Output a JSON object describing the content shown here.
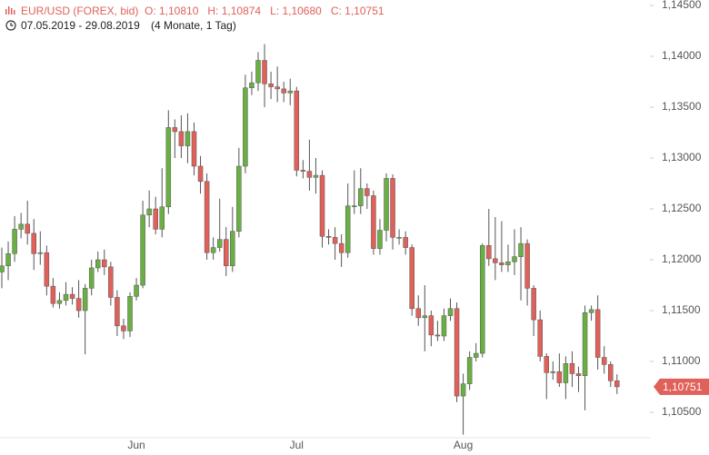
{
  "chart_data": {
    "type": "candlestick",
    "title": "EUR/USD (FOREX, bid)",
    "ohlc_labels": [
      "O: 1,10810",
      "H: 1,10874",
      "L: 1,10680",
      "C: 1,10751"
    ],
    "date_range": "07.05.2019 - 29.08.2019",
    "period": "(4 Monate, 1 Tag)",
    "categories": [
      null,
      null,
      null,
      null,
      null,
      null,
      null,
      null,
      null,
      null,
      null,
      null,
      null,
      null,
      null,
      null,
      null,
      null,
      null,
      null,
      null,
      "Jun",
      null,
      null,
      null,
      null,
      null,
      null,
      null,
      null,
      null,
      null,
      null,
      null,
      null,
      null,
      null,
      null,
      null,
      null,
      null,
      null,
      null,
      null,
      null,
      null,
      "Jul",
      null,
      null,
      null,
      null,
      null,
      null,
      null,
      null,
      null,
      null,
      null,
      null,
      null,
      null,
      null,
      null,
      null,
      null,
      null,
      null,
      null,
      null,
      null,
      null,
      null,
      "Aug",
      null,
      null,
      null,
      null,
      null,
      null,
      null,
      null,
      null,
      null,
      null,
      null,
      null,
      null,
      null,
      null,
      null,
      null,
      null,
      null,
      null,
      null,
      null,
      null
    ],
    "open": [
      1.1188,
      1.1194,
      1.1206,
      1.123,
      1.1235,
      1.1226,
      1.1206,
      1.1207,
      1.1174,
      1.1157,
      1.116,
      1.1166,
      1.1162,
      1.115,
      1.1172,
      1.1192,
      1.12,
      1.1193,
      1.1163,
      1.1135,
      1.113,
      1.1164,
      1.1175,
      1.1244,
      1.125,
      1.123,
      1.1252,
      1.133,
      1.1326,
      1.1312,
      1.1326,
      1.1292,
      1.1277,
      1.1207,
      1.1212,
      1.122,
      1.1194,
      1.1228,
      1.1292,
      1.1369,
      1.1374,
      1.1396,
      1.1373,
      1.137,
      1.1368,
      1.1364,
      1.1366,
      1.1288,
      1.1287,
      1.1281,
      1.1283,
      1.1223,
      1.1222,
      1.1216,
      1.1207,
      1.1253,
      1.1253,
      1.127,
      1.1263,
      1.1211,
      1.1229,
      1.128,
      1.1222,
      1.1222,
      1.1212,
      1.1152,
      1.1143,
      1.1145,
      1.1126,
      1.1125,
      1.1145,
      1.1152,
      1.1066,
      1.1078,
      1.1104,
      1.1108,
      1.1214,
      1.1201,
      1.1197,
      1.1195,
      1.1198,
      1.1203,
      1.1216,
      1.1172,
      1.1141,
      1.1105,
      1.1089,
      1.109,
      1.1079,
      1.1098,
      1.1088,
      1.1086,
      1.1148,
      1.1151,
      1.1104,
      1.1097,
      1.1081
    ],
    "high": [
      1.1212,
      1.1218,
      1.1243,
      1.1246,
      1.1258,
      1.124,
      1.1228,
      1.1214,
      1.1182,
      1.1168,
      1.1178,
      1.1173,
      1.118,
      1.1176,
      1.12,
      1.1208,
      1.121,
      1.1198,
      1.117,
      1.1142,
      1.1168,
      1.1182,
      1.1258,
      1.1268,
      1.1262,
      1.129,
      1.1347,
      1.1338,
      1.1342,
      1.1344,
      1.1335,
      1.1302,
      1.1285,
      1.1222,
      1.126,
      1.1232,
      1.1252,
      1.131,
      1.1382,
      1.1385,
      1.1404,
      1.1412,
      1.1385,
      1.139,
      1.1375,
      1.1378,
      1.137,
      1.1298,
      1.1318,
      1.13,
      1.1288,
      1.123,
      1.1232,
      1.1225,
      1.1275,
      1.1288,
      1.129,
      1.1275,
      1.1268,
      1.124,
      1.1285,
      1.1284,
      1.123,
      1.1228,
      1.1215,
      1.1165,
      1.1175,
      1.115,
      1.114,
      1.1152,
      1.1162,
      1.1158,
      1.1088,
      1.111,
      1.1118,
      1.1216,
      1.125,
      1.1242,
      1.1238,
      1.1215,
      1.123,
      1.1232,
      1.122,
      1.1175,
      1.115,
      1.1108,
      1.11,
      1.1108,
      1.1105,
      1.111,
      1.1095,
      1.1155,
      1.1155,
      1.1165,
      1.1115,
      1.11,
      1.10874
    ],
    "low": [
      1.1172,
      1.118,
      1.1198,
      1.1221,
      1.1215,
      1.119,
      1.1195,
      1.1165,
      1.1153,
      1.1152,
      1.1155,
      1.1156,
      1.1143,
      1.1107,
      1.1165,
      1.1188,
      1.1185,
      1.1155,
      1.1125,
      1.1122,
      1.1124,
      1.116,
      1.1172,
      1.1232,
      1.1225,
      1.1222,
      1.1245,
      1.13,
      1.13,
      1.1295,
      1.1283,
      1.1265,
      1.12,
      1.12,
      1.1208,
      1.1184,
      1.1188,
      1.1222,
      1.1285,
      1.1362,
      1.1366,
      1.135,
      1.1358,
      1.1355,
      1.1355,
      1.1352,
      1.1282,
      1.128,
      1.1268,
      1.1265,
      1.1212,
      1.1215,
      1.12,
      1.1193,
      1.1202,
      1.1245,
      1.1245,
      1.125,
      1.1205,
      1.1205,
      1.1218,
      1.121,
      1.1215,
      1.1205,
      1.1145,
      1.1135,
      1.111,
      1.1115,
      1.112,
      1.112,
      1.114,
      1.106,
      1.1028,
      1.1072,
      1.11,
      1.1104,
      1.1194,
      1.118,
      1.1188,
      1.1188,
      1.1185,
      1.116,
      1.1155,
      1.1125,
      1.11,
      1.1063,
      1.1082,
      1.1075,
      1.1063,
      1.1075,
      1.107,
      1.1052,
      1.114,
      1.1092,
      1.1088,
      1.1075,
      1.1068
    ],
    "close": [
      1.1194,
      1.1206,
      1.123,
      1.1235,
      1.1226,
      1.1206,
      1.1207,
      1.1174,
      1.1157,
      1.116,
      1.1166,
      1.1162,
      1.115,
      1.1172,
      1.1192,
      1.12,
      1.1193,
      1.1163,
      1.1135,
      1.113,
      1.1164,
      1.1175,
      1.1244,
      1.125,
      1.123,
      1.1252,
      1.133,
      1.1326,
      1.1312,
      1.1326,
      1.1292,
      1.1277,
      1.1207,
      1.1212,
      1.122,
      1.1194,
      1.1228,
      1.1292,
      1.1369,
      1.1374,
      1.1396,
      1.1373,
      1.137,
      1.1368,
      1.1364,
      1.1366,
      1.1288,
      1.1287,
      1.1281,
      1.1283,
      1.1223,
      1.1222,
      1.1216,
      1.1207,
      1.1253,
      1.1253,
      1.127,
      1.1263,
      1.1211,
      1.1229,
      1.128,
      1.1222,
      1.1222,
      1.1212,
      1.1152,
      1.1143,
      1.1145,
      1.1126,
      1.1125,
      1.1145,
      1.1152,
      1.1066,
      1.1078,
      1.1104,
      1.1108,
      1.1214,
      1.1201,
      1.1197,
      1.1195,
      1.1198,
      1.1203,
      1.1216,
      1.1172,
      1.1141,
      1.1105,
      1.1089,
      1.109,
      1.1079,
      1.1098,
      1.1088,
      1.1086,
      1.1148,
      1.1151,
      1.1104,
      1.1097,
      1.1081,
      1.10751
    ],
    "up_color": "#6aaf44",
    "down_color": "#e0605a",
    "last_price": {
      "value": 1.10751,
      "label": "1,10751"
    },
    "ylim": [
      1.1025,
      1.14554
    ],
    "yticks": [
      {
        "value": 1.145,
        "label": "1,14500"
      },
      {
        "value": 1.14,
        "label": "1,14000"
      },
      {
        "value": 1.135,
        "label": "1,13500"
      },
      {
        "value": 1.13,
        "label": "1,13000"
      },
      {
        "value": 1.125,
        "label": "1,12500"
      },
      {
        "value": 1.12,
        "label": "1,12000"
      },
      {
        "value": 1.115,
        "label": "1,11500"
      },
      {
        "value": 1.11,
        "label": "1,11000"
      },
      {
        "value": 1.105,
        "label": "1,10500"
      }
    ]
  }
}
